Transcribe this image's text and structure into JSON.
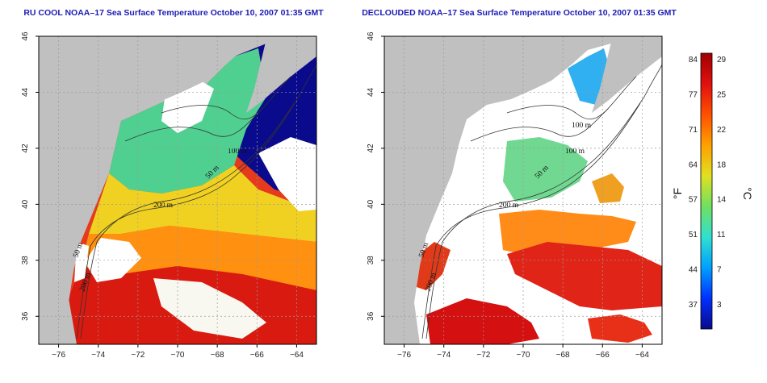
{
  "panels": [
    {
      "id": "left",
      "title": "RU COOL NOAA–17 Sea Surface Temperature October 10, 2007 01:35 GMT",
      "isobaths": [
        "200 m",
        "100 m",
        "50 m",
        "50 m",
        "200 m"
      ]
    },
    {
      "id": "right",
      "title": "DECLOUDED NOAA–17 Sea Surface Temperature October 10, 2007 01:35 GMT",
      "isobaths": [
        "200 m",
        "100 m",
        "50 m",
        "100 m",
        "50 m",
        "200 m"
      ]
    }
  ],
  "axes": {
    "x_ticks": [
      "−76",
      "−74",
      "−72",
      "−70",
      "−68",
      "−66",
      "−64"
    ],
    "x_values": [
      -76,
      -74,
      -72,
      -70,
      -68,
      -66,
      -64
    ],
    "y_ticks": [
      "36",
      "38",
      "40",
      "42",
      "44",
      "46"
    ],
    "y_values": [
      36,
      38,
      40,
      42,
      44,
      46
    ],
    "xlim": [
      -77,
      -63
    ],
    "ylim": [
      35,
      46
    ]
  },
  "colorbar": {
    "fahrenheit_labels": [
      "84",
      "77",
      "71",
      "64",
      "57",
      "51",
      "44",
      "37"
    ],
    "celsius_labels": [
      "29",
      "25",
      "22",
      "18",
      "14",
      "11",
      "7",
      "3"
    ],
    "unit_left": "°F",
    "unit_right": "°C",
    "colors": [
      "#0a0a8c",
      "#0030ff",
      "#00a0ff",
      "#30e0d0",
      "#70e060",
      "#e0e020",
      "#ffa000",
      "#ff5000",
      "#e01010",
      "#a00000"
    ]
  },
  "colors": {
    "land": "#c0c0c0",
    "cloud": "#ffffff",
    "grid": "#9a9a9a",
    "contour": "#333333"
  }
}
